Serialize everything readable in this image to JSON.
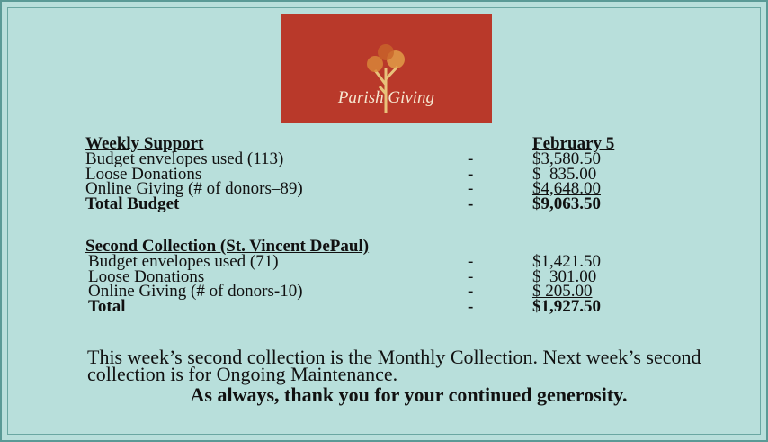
{
  "logo": {
    "text": "Parish Giving"
  },
  "weekly": {
    "heading": "Weekly Support",
    "date": "February 5",
    "rows": [
      [
        "Budget envelopes used (113)",
        "-",
        "$3,580.50"
      ],
      [
        "Loose Donations",
        "-",
        "$  835.00"
      ],
      [
        "Online Giving (# of donors–89)",
        "-",
        "$4,648.00"
      ],
      [
        "Total Budget",
        "-",
        "$9,063.50"
      ]
    ]
  },
  "second": {
    "heading": "Second Collection (St. Vincent DePaul)",
    "rows": [
      [
        "Budget envelopes used (71)",
        "-",
        "$1,421.50"
      ],
      [
        "Loose Donations",
        "-",
        "$  301.00"
      ],
      [
        "Online Giving (# of donors-10)",
        "-",
        "$ 205.00"
      ],
      [
        "Total",
        "-",
        "$1,927.50"
      ]
    ]
  },
  "note": {
    "text": "This week’s second collection is the Monthly Collection. Next week’s second collection is for Ongoing Maintenance.",
    "closing": "As always, thank you for your continued generosity."
  }
}
